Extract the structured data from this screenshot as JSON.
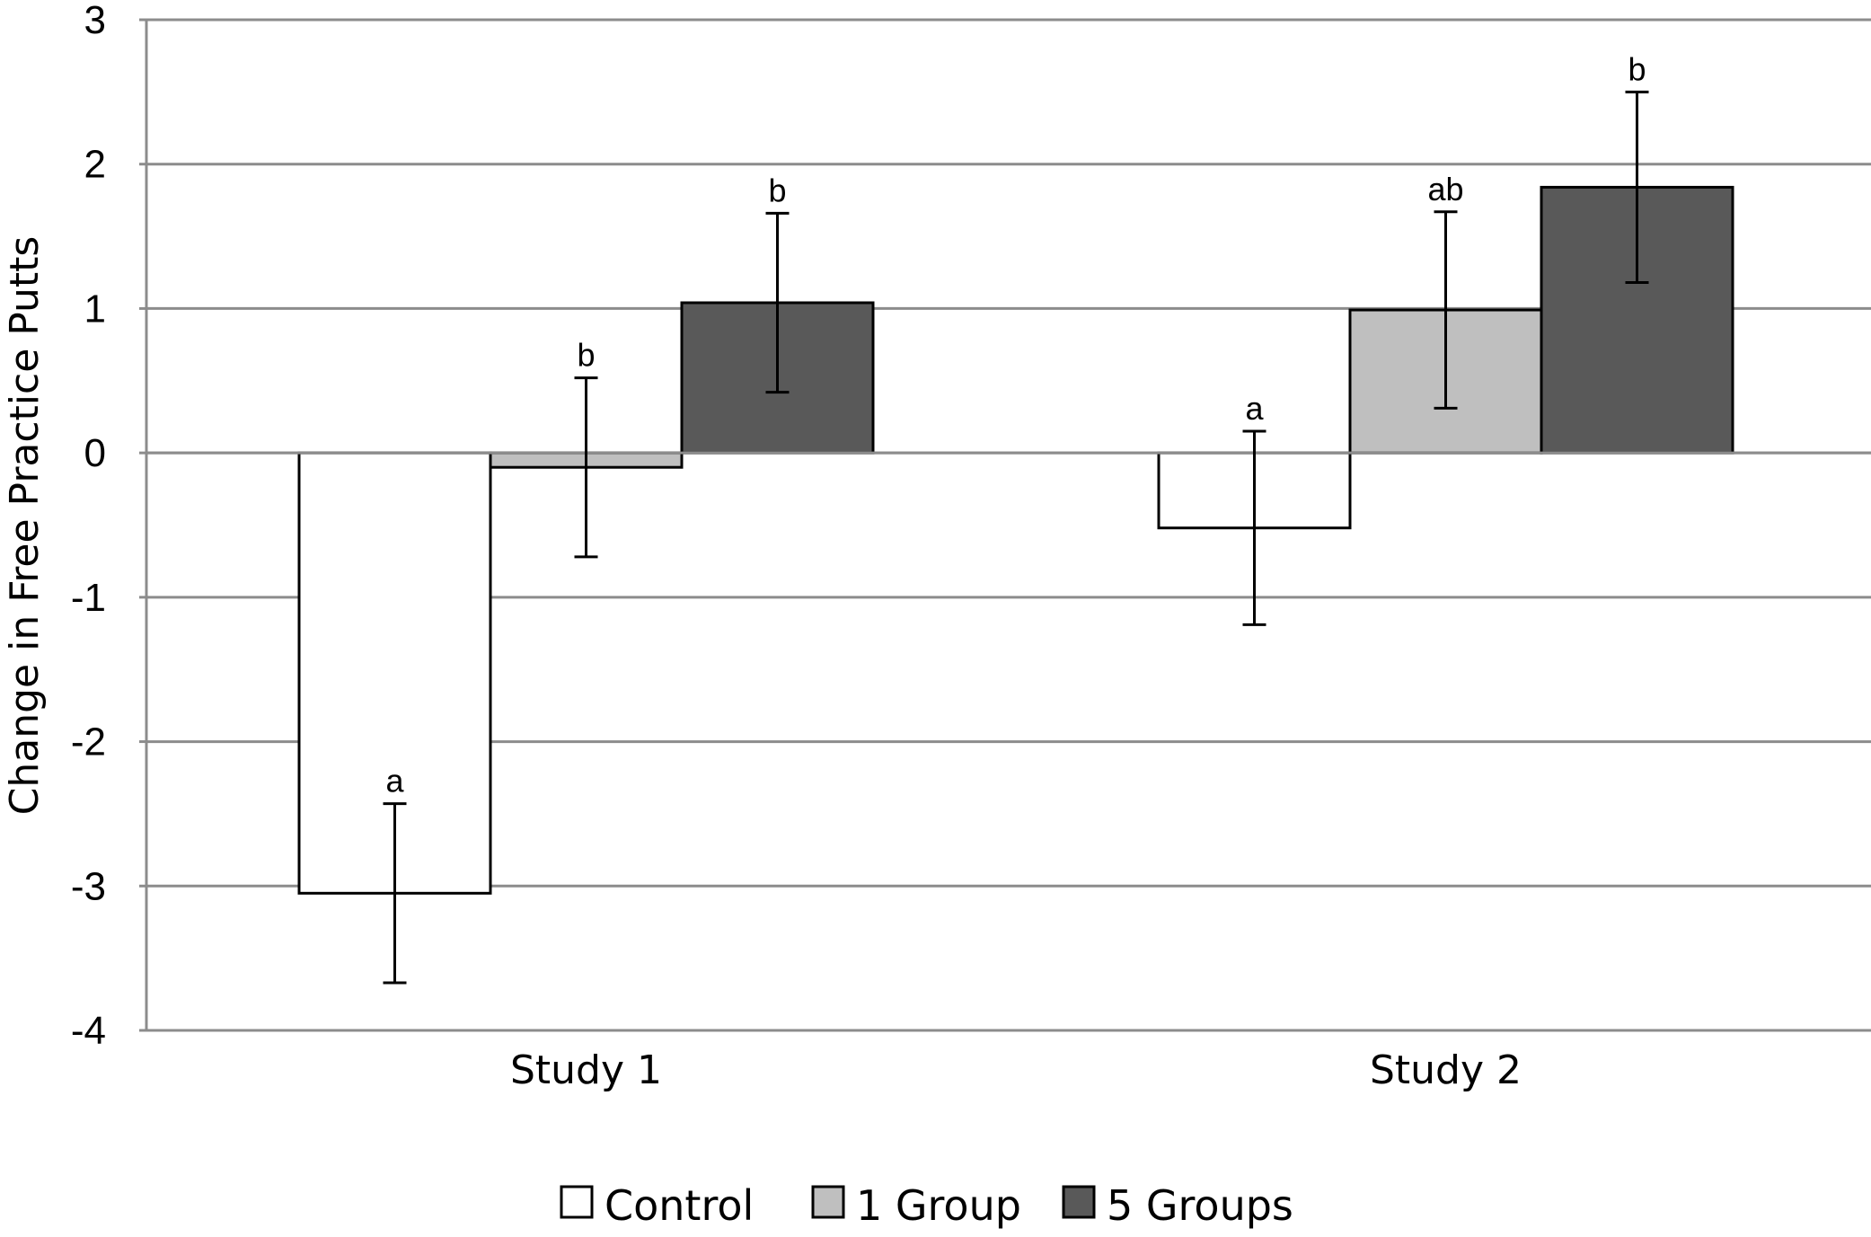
{
  "chart_data": {
    "type": "bar",
    "title": "",
    "xlabel": "",
    "ylabel": "Change in Free Practice Putts",
    "ylim": [
      -4,
      3
    ],
    "yticks": [
      3,
      2,
      1,
      0,
      -1,
      -2,
      -3,
      -4
    ],
    "ytick_labels": [
      "3",
      "2",
      "1",
      "0",
      "-1",
      "-2",
      "-3",
      "-4"
    ],
    "grid": true,
    "legend_position": "bottom",
    "categories": [
      "Study 1",
      "Study 2"
    ],
    "series": [
      {
        "name": "Control",
        "color": "#ffffff",
        "values": [
          -3.05,
          -0.52
        ],
        "error": [
          0.62,
          0.67
        ],
        "labels": [
          "a",
          "a"
        ]
      },
      {
        "name": "1 Group",
        "color": "#bfbfbf",
        "values": [
          -0.1,
          0.99
        ],
        "error": [
          0.62,
          0.68
        ],
        "labels": [
          "b",
          "ab"
        ]
      },
      {
        "name": "5 Groups",
        "color": "#595959",
        "values": [
          1.04,
          1.84
        ],
        "error": [
          0.62,
          0.66
        ],
        "labels": [
          "b",
          "b"
        ]
      }
    ]
  }
}
